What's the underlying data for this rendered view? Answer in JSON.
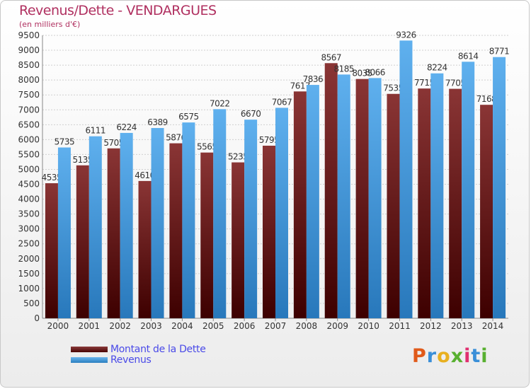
{
  "title": "Revenus/Dette - VENDARGUES",
  "subtitle": "(en milliers d'€)",
  "logo": "Proxiti",
  "colors": {
    "dette": "#6b1010",
    "revenus": "#3a93d8",
    "title": "#b03060",
    "legend_text": "#4a4ae8"
  },
  "chart_data": {
    "type": "bar",
    "categories": [
      "2000",
      "2001",
      "2002",
      "2003",
      "2004",
      "2005",
      "2006",
      "2007",
      "2008",
      "2009",
      "2010",
      "2011",
      "2012",
      "2013",
      "2014"
    ],
    "series": [
      {
        "name": "Montant de la Dette",
        "values": [
          4535,
          5135,
          5705,
          4610,
          5876,
          5565,
          5235,
          5795,
          7617,
          8567,
          8035,
          7535,
          7715,
          7705,
          7168
        ],
        "labels": [
          "4535",
          "5135",
          "5705",
          "4610",
          "5876",
          "5565",
          "5235",
          "5795",
          "7617",
          "8567",
          "8035",
          "7535",
          "7715",
          "7705",
          "7168"
        ]
      },
      {
        "name": "Revenus",
        "values": [
          5735,
          6111,
          6224,
          6389,
          6575,
          7022,
          6670,
          7067,
          7836,
          8185,
          8066,
          9326,
          8224,
          8614,
          8771
        ],
        "labels": [
          "5735",
          "6111",
          "6224",
          "6389",
          "6575",
          "7022",
          "6670",
          "7067",
          "7836",
          "8185",
          "8066",
          "9326",
          "8224",
          "8614",
          "8771"
        ]
      }
    ],
    "ylim": [
      0,
      9500
    ],
    "yticks": [
      0,
      500,
      1000,
      1500,
      2000,
      2500,
      3000,
      3500,
      4000,
      4500,
      5000,
      5500,
      6000,
      6500,
      7000,
      7500,
      8000,
      8500,
      9000,
      9500
    ],
    "grid": true,
    "legend": "bottom-left"
  }
}
